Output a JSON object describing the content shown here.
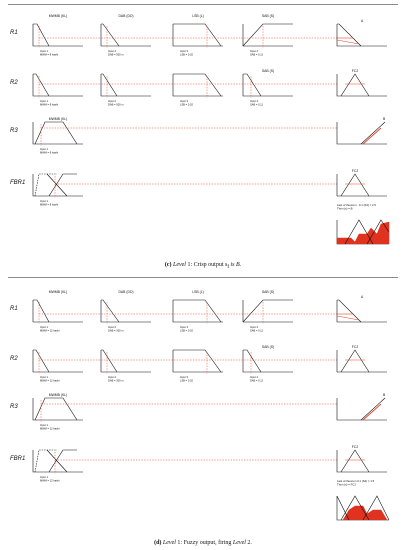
{
  "colors": {
    "rule_line": "#e8442a",
    "fill_red": "#e0321e",
    "axis": "#111111"
  },
  "panel_c": {
    "caption": {
      "fig": "(c)",
      "level_word": "Level",
      "text": " 1: Crisp output s",
      "sub": "f",
      "tail": " is B."
    },
    "headers": [
      "MWMB (KL)",
      "DAB (DD)",
      "LSB (L)",
      "SAB (S)"
    ],
    "rows": [
      "R1",
      "R2",
      "R3",
      "FBR1"
    ],
    "out_labels": [
      "A",
      "FC2",
      "B",
      "FC2"
    ],
    "inputs_r1": [
      "Input 1\nMWM = 8 hashi",
      "Input 2\nDAB = 500 m",
      "Input 3\nLSB = 0.02",
      "Input 4\nSAB = 0.11"
    ],
    "inputs_r2": [
      "Input 1\nMWM = 8 hashi",
      "Input 2\nDAB = 500 m",
      "Input 3\nLSB = 0.02",
      "Input 4\nSAB = 0.11"
    ],
    "inputs_r3": [
      "Input 1\nMWM = 8 hashi"
    ],
    "inputs_fbr1": [
      "Input 1\nMWM = 8 hashi"
    ],
    "rule_header_r2_sab": "SAB (S)",
    "result_text": "Last of theorem · 0.1 (S4) = 2.5\nThen (s) = B"
  },
  "panel_d": {
    "caption": {
      "fig": "(d)",
      "level_word": "Level",
      "text": " 1: Fuzzy output, firing ",
      "level2": "Level",
      "tail": " 2."
    },
    "headers": [
      "MWMB (KL)",
      "DAB (DD)",
      "LSB (L)",
      "SAB (S)"
    ],
    "rows": [
      "R1",
      "R2",
      "R3",
      "FBR1"
    ],
    "out_labels": [
      "A",
      "FC2",
      "B",
      "FC2"
    ],
    "inputs_r1": [
      "Input 1\nMWM = 12 hashi",
      "Input 2\nDAB = 300 m",
      "Input 3\nLSB = 0.02",
      "Input 4\nSAB = 0.11"
    ],
    "inputs_r2": [
      "Input 1\nMWM = 12 hashi",
      "Input 2\nDAB = 300 m",
      "Input 3\nLSB = 0.02",
      "Input 4\nSAB = 0.11"
    ],
    "inputs_r3": [
      "Input 1\nMWM = 12 hashi"
    ],
    "inputs_fbr1": [
      "Input 1\nMWM = 12 hashi"
    ],
    "r3_header": "MWMB (KL)",
    "rule_header_r2_sab": "SAB (S)",
    "result_text": "Last of theorem 0.1 (S4) = 1.5\nThen (s) = FC2"
  }
}
